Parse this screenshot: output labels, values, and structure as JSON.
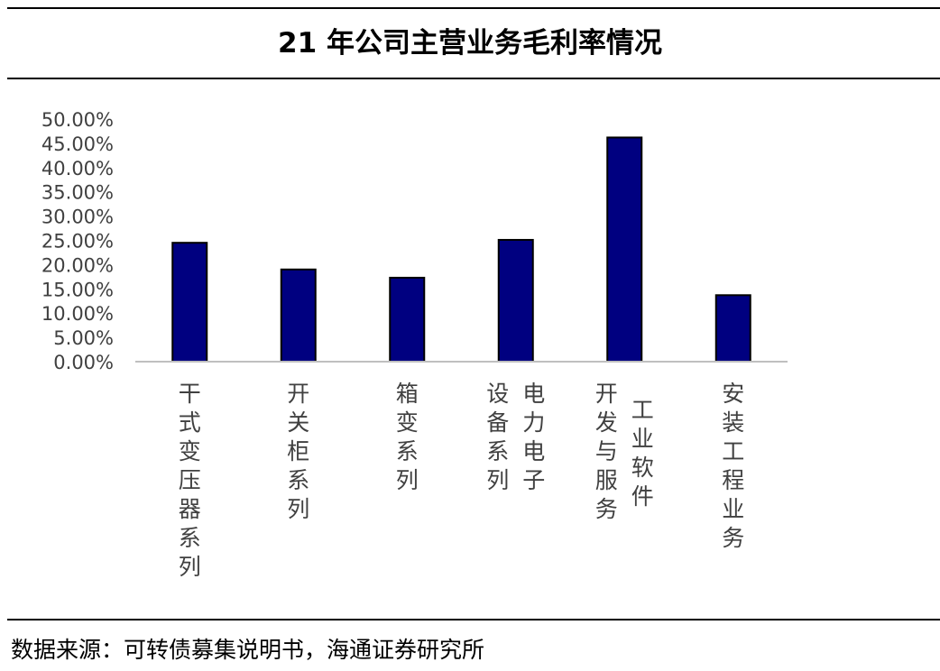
{
  "title": "21 年公司主营业务毛利率情况",
  "source": "数据来源：可转债募集说明书，海通证券研究所",
  "colors": {
    "bar": "#000080",
    "bar_stroke": "#000000",
    "axis": "#bfbfbf",
    "tick_text": "#404040"
  },
  "chart_data": {
    "type": "bar",
    "title": "",
    "xlabel": "",
    "ylabel": "",
    "ylim": [
      0,
      0.5
    ],
    "yticks": [
      0,
      0.05,
      0.1,
      0.15,
      0.2,
      0.25,
      0.3,
      0.35,
      0.4,
      0.45,
      0.5
    ],
    "ytick_labels": [
      "0.00%",
      "5.00%",
      "10.00%",
      "15.00%",
      "20.00%",
      "25.00%",
      "30.00%",
      "35.00%",
      "40.00%",
      "45.00%",
      "50.00%"
    ],
    "grid": false,
    "legend": "none",
    "categories": [
      "干式变压器系列",
      "开关柜系列",
      "箱变系列",
      "电力电子设备系列",
      "工业软件开发与服务",
      "安装工程业务"
    ],
    "category_label_columns": [
      [
        "干式变压器系列"
      ],
      [
        "开关柜系列"
      ],
      [
        "箱变系列"
      ],
      [
        "设备系列",
        "电力电子"
      ],
      [
        "开发与服务",
        "工业软件"
      ],
      [
        "安装工程业务"
      ]
    ],
    "values": [
      0.245,
      0.19,
      0.173,
      0.251,
      0.462,
      0.137
    ]
  }
}
